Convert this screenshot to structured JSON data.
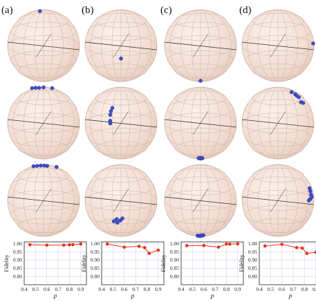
{
  "panels": [
    {
      "label": "(a)",
      "spheres": [
        {
          "points": [
            [
              -0.1,
              0.96
            ]
          ]
        },
        {
          "points": [
            [
              -0.32,
              0.97
            ],
            [
              -0.22,
              0.98
            ],
            [
              -0.12,
              0.98
            ],
            [
              0.0,
              0.99
            ],
            [
              0.24,
              0.97
            ]
          ]
        },
        {
          "points": [
            [
              -0.28,
              0.95
            ],
            [
              -0.18,
              0.96
            ],
            [
              -0.08,
              0.97
            ],
            [
              0.02,
              0.97
            ],
            [
              0.1,
              0.96
            ],
            [
              0.36,
              0.93
            ]
          ]
        }
      ],
      "fidelity": {
        "p": [
          0.45,
          0.6,
          0.75,
          0.8,
          0.83,
          0.9
        ],
        "f": [
          0.993,
          0.99,
          0.99,
          0.992,
          0.993,
          0.997
        ]
      }
    },
    {
      "label": "(b)",
      "spheres": [
        {
          "points": [
            [
              0.0,
              -0.36
            ]
          ]
        },
        {
          "points": [
            [
              -0.24,
              0.42
            ],
            [
              -0.28,
              0.33
            ],
            [
              -0.3,
              0.23
            ],
            [
              -0.3,
              0.06
            ],
            [
              -0.3,
              -0.01
            ]
          ]
        },
        {
          "points": [
            [
              -0.2,
              -0.58
            ],
            [
              -0.1,
              -0.62
            ],
            [
              -0.02,
              -0.56
            ],
            [
              0.04,
              -0.5
            ],
            [
              -0.12,
              -0.52
            ]
          ]
        }
      ],
      "fidelity": {
        "p": [
          0.45,
          0.6,
          0.73,
          0.78,
          0.82,
          0.9
        ],
        "f": [
          0.997,
          0.978,
          0.983,
          0.975,
          0.94,
          0.96
        ]
      }
    },
    {
      "label": "(c)",
      "spheres": [
        {
          "points": [
            [
              0.0,
              -0.98
            ]
          ]
        },
        {
          "points": [
            [
              -0.05,
              -0.98
            ],
            [
              0.0,
              -0.99
            ],
            [
              0.05,
              -0.98
            ],
            [
              0.02,
              -0.97
            ],
            [
              -0.03,
              -0.97
            ]
          ]
        },
        {
          "points": [
            [
              -0.08,
              -0.98
            ],
            [
              -0.04,
              -0.99
            ],
            [
              0.0,
              -0.99
            ],
            [
              0.04,
              -0.98
            ],
            [
              0.08,
              -0.97
            ],
            [
              0.02,
              -0.97
            ]
          ]
        }
      ],
      "fidelity": {
        "p": [
          0.45,
          0.6,
          0.73,
          0.8,
          0.83,
          0.9
        ],
        "f": [
          0.987,
          0.988,
          0.978,
          0.997,
          0.996,
          0.998
        ]
      }
    },
    {
      "label": "(d)",
      "spheres": [
        {
          "points": [
            [
              0.98,
              0.06
            ]
          ]
        },
        {
          "points": [
            [
              0.38,
              0.86
            ],
            [
              0.48,
              0.8
            ],
            [
              0.52,
              0.76
            ],
            [
              0.58,
              0.72
            ],
            [
              0.64,
              0.58
            ],
            [
              0.7,
              0.56
            ]
          ]
        },
        {
          "points": [
            [
              0.88,
              0.34
            ],
            [
              0.9,
              0.26
            ],
            [
              0.92,
              0.16
            ],
            [
              0.9,
              0.04
            ],
            [
              0.86,
              0.0
            ],
            [
              0.94,
              0.1
            ]
          ]
        }
      ],
      "fidelity": {
        "p": [
          0.45,
          0.6,
          0.73,
          0.78,
          0.82,
          0.9
        ],
        "f": [
          0.985,
          0.995,
          0.975,
          0.972,
          0.94,
          0.947
        ]
      }
    }
  ],
  "chart_data": {
    "type": "line",
    "xlabel": "p",
    "ylabel": "Fidelity",
    "xlim": [
      0.4,
      0.95
    ],
    "ylim": [
      0.75,
      1.01
    ],
    "xticks": [
      "0.4",
      "0.5",
      "0.6",
      "0.7",
      "0.8",
      "0.9"
    ],
    "yticks": [
      "0.80",
      "0.85",
      "0.90",
      "0.95",
      "1.00"
    ],
    "grid": true
  },
  "colors": {
    "sphere_fill": "#f3ddd2",
    "sphere_edge": "#d3b7ab",
    "grid_line": "#c9b1a6",
    "bloch_point": "#3d4fc6",
    "fid_line": "#e8331d",
    "fid_grid": "#c9cbe8",
    "axis": "#222222"
  }
}
